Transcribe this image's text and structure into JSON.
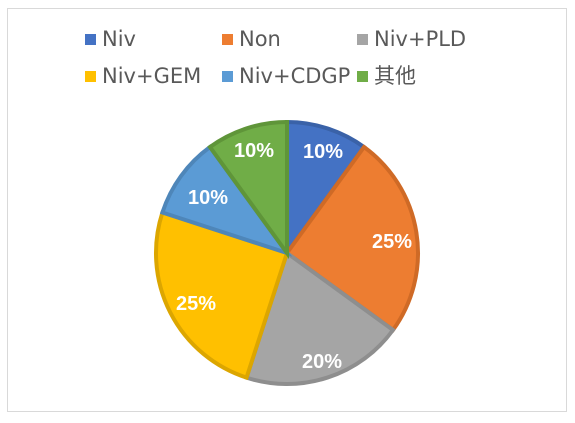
{
  "chart_data": {
    "type": "pie",
    "title": "",
    "legend_position": "top",
    "categories": [
      "Niv",
      "Non",
      "Niv+PLD",
      "Niv+GEM",
      "Niv+CDGP",
      "其他"
    ],
    "values": [
      10,
      25,
      20,
      25,
      10,
      10
    ],
    "labels": [
      "10%",
      "25%",
      "20%",
      "25%",
      "10%",
      "10%"
    ],
    "colors": [
      "#4472C4",
      "#ED7D31",
      "#A5A5A5",
      "#FFC000",
      "#5B9BD5",
      "#70AD47"
    ],
    "border_colors": [
      "#3A62A8",
      "#CF6A26",
      "#8E8E8E",
      "#DCA600",
      "#4E86B9",
      "#5F9539"
    ]
  }
}
